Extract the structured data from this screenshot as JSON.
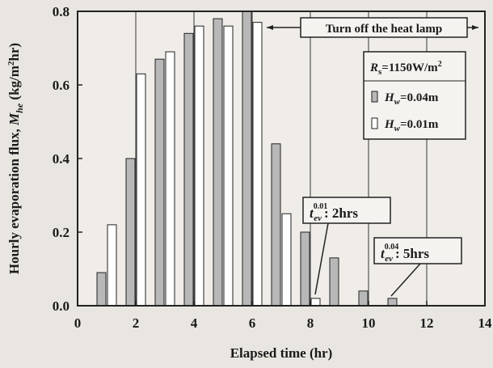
{
  "chart_data": {
    "type": "bar",
    "xlabel": "Elapsed time (hr)",
    "ylabel": "Hourly evaporation flux, M_he (kg/m²hr)",
    "ylabel_parts": {
      "main": "Hourly evaporation flux, ",
      "sym": "M",
      "sub": "he",
      "unit_pre": " (kg/m",
      "unit_sup": "2",
      "unit_post": "hr)"
    },
    "xlim": [
      0,
      14
    ],
    "ylim": [
      0,
      0.8
    ],
    "xticks": [
      0,
      2,
      4,
      6,
      8,
      10,
      12,
      14
    ],
    "yticks": [
      0.0,
      0.2,
      0.4,
      0.6,
      0.8
    ],
    "xtick_labels": [
      "0",
      "2",
      "4",
      "6",
      "8",
      "10",
      "12",
      "14"
    ],
    "ytick_labels": [
      "0.0",
      "0.2",
      "0.4",
      "0.6",
      "0.8"
    ],
    "grid": "vertical",
    "series": [
      {
        "name": "H_w=0.04m",
        "label": {
          "sym": "H",
          "sub": "w",
          "value": "=0.04m"
        },
        "fill": "#b8b8b8",
        "x": [
          1,
          2,
          3,
          4,
          5,
          6,
          7,
          8,
          9,
          10,
          11
        ],
        "values": [
          0.09,
          0.4,
          0.67,
          0.74,
          0.78,
          0.8,
          0.44,
          0.2,
          0.13,
          0.04,
          0.02
        ]
      },
      {
        "name": "H_w=0.01m",
        "label": {
          "sym": "H",
          "sub": "w",
          "value": "=0.01m"
        },
        "fill": "#ffffff",
        "x": [
          1,
          2,
          3,
          4,
          5,
          6,
          7,
          8
        ],
        "values": [
          0.22,
          0.63,
          0.69,
          0.76,
          0.76,
          0.77,
          0.25,
          0.02
        ]
      }
    ],
    "legend": {
      "placement": "top-right",
      "radiation": {
        "sym": "R",
        "sub": "s",
        "value": "=1150W/m",
        "sup": "2"
      }
    },
    "annotations": {
      "heat_lamp": "Turn off the heat lamp",
      "t001": {
        "sym": "t",
        "sub": "ev",
        "sup": "0.01",
        "text": ": 2hrs"
      },
      "t004": {
        "sym": "t",
        "sub": "ev",
        "sup": "0.04",
        "text": ": 5hrs"
      }
    }
  }
}
